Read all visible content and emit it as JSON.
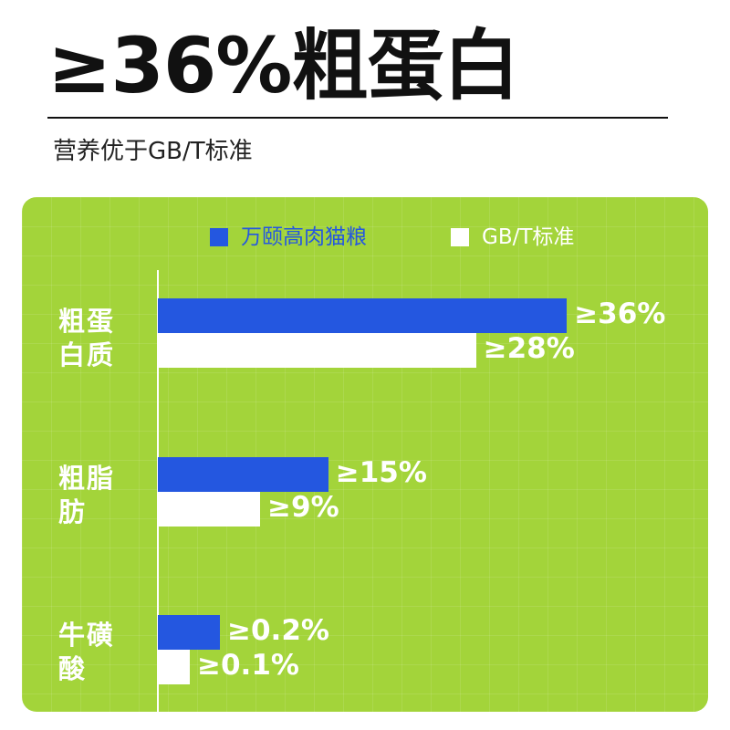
{
  "header": {
    "headline": "≥36%粗蛋白",
    "subtitle": "营养优于GB/T标准"
  },
  "colors": {
    "panel_bg": "#a3d43a",
    "series_a": "#2457e0",
    "series_b": "#ffffff"
  },
  "chart_data": {
    "type": "bar",
    "orientation": "horizontal",
    "legend_position": "top",
    "grid": true,
    "xlim": [
      0,
      40
    ],
    "categories": [
      "粗蛋白质",
      "粗脂肪",
      "牛磺酸"
    ],
    "series": [
      {
        "name": "万颐高肉猫粮",
        "values": [
          36,
          15,
          0.2
        ],
        "labels": [
          "≥36%",
          "≥15%",
          "≥0.2%"
        ]
      },
      {
        "name": "GB/T标准",
        "values": [
          28,
          9,
          0.1
        ],
        "labels": [
          "≥28%",
          "≥9%",
          "≥0.1%"
        ]
      }
    ]
  }
}
